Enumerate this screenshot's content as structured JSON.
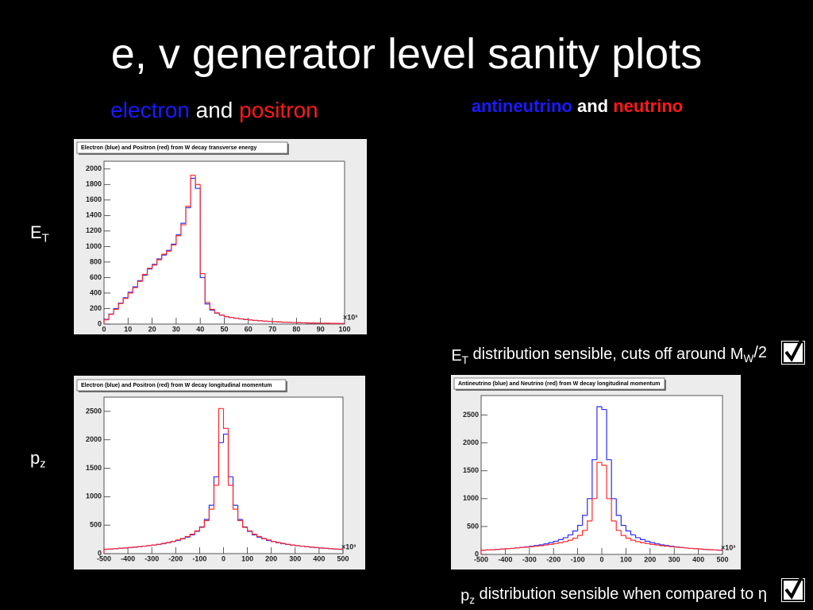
{
  "slide": {
    "title": "e, v generator level sanity plots",
    "column_headers": [
      [
        {
          "text": "electron",
          "color": "#1a1aff"
        },
        {
          "text": " and ",
          "color": "#ffffff"
        },
        {
          "text": "positron",
          "color": "#ff1a1a"
        }
      ],
      [
        {
          "text": "antineutrino",
          "color": "#1a1aff"
        },
        {
          "text": " and ",
          "color": "#ffffff"
        },
        {
          "text": "neutrino",
          "color": "#ff1a1a"
        }
      ]
    ],
    "row_labels": [
      [
        {
          "text": "E"
        },
        {
          "text": "T",
          "sub": true
        }
      ],
      [
        {
          "text": "p"
        },
        {
          "text": "z",
          "sub": true
        }
      ]
    ],
    "notes": [
      [
        {
          "text": "E"
        },
        {
          "text": "T",
          "sub": true
        },
        {
          "text": " distribution sensible, cuts off around M"
        },
        {
          "text": "W",
          "sub": true
        },
        {
          "text": "/2"
        }
      ],
      [
        {
          "text": "p"
        },
        {
          "text": "z",
          "sub": true
        },
        {
          "text": " distribution sensible when compared to η"
        }
      ]
    ]
  },
  "chart_data": [
    {
      "type": "histogram",
      "title": "Electron (blue) and Positron (red) from W decay transverse energy",
      "x_multiplier": "×10³",
      "bins": [
        0,
        2,
        4,
        6,
        8,
        10,
        12,
        14,
        16,
        18,
        20,
        22,
        24,
        26,
        28,
        30,
        32,
        34,
        36,
        38,
        40,
        42,
        44,
        46,
        48,
        50,
        52,
        54,
        56,
        58,
        60,
        62,
        64,
        66,
        68,
        70,
        72,
        74,
        76,
        78,
        80,
        82,
        84,
        86,
        88,
        90,
        92,
        94,
        96,
        98,
        100
      ],
      "series": [
        {
          "name": "Electron",
          "color": "#2b2bff",
          "values": [
            60,
            130,
            200,
            270,
            340,
            410,
            480,
            560,
            630,
            710,
            770,
            840,
            890,
            950,
            1030,
            1150,
            1300,
            1500,
            1880,
            1750,
            600,
            260,
            180,
            140,
            115,
            95,
            85,
            75,
            66,
            58,
            52,
            46,
            42,
            38,
            34,
            30,
            27,
            24,
            22,
            20,
            18,
            16,
            14,
            13,
            12,
            11,
            10,
            9,
            8,
            7
          ]
        },
        {
          "name": "Positron",
          "color": "#ff2b2b",
          "values": [
            55,
            125,
            190,
            265,
            330,
            400,
            470,
            550,
            640,
            720,
            760,
            830,
            900,
            940,
            1020,
            1140,
            1280,
            1520,
            1920,
            1800,
            650,
            280,
            190,
            145,
            118,
            97,
            86,
            76,
            67,
            60,
            53,
            47,
            43,
            38,
            35,
            31,
            28,
            25,
            22,
            20,
            18,
            16,
            15,
            13,
            12,
            11,
            10,
            9,
            8,
            7
          ]
        }
      ],
      "xlim": [
        0,
        100
      ],
      "xticks": [
        0,
        10,
        20,
        30,
        40,
        50,
        60,
        70,
        80,
        90,
        100
      ],
      "ylim": [
        0,
        2100
      ],
      "yticks": [
        0,
        200,
        400,
        600,
        800,
        1000,
        1200,
        1400,
        1600,
        1800,
        2000
      ]
    },
    {
      "type": "histogram",
      "title": "Electron (blue) and Positron (red) from W decay longitudinal momentum",
      "x_multiplier": "×10³",
      "bins": [
        -500,
        -480,
        -460,
        -440,
        -420,
        -400,
        -380,
        -360,
        -340,
        -320,
        -300,
        -280,
        -260,
        -240,
        -220,
        -200,
        -180,
        -160,
        -140,
        -120,
        -100,
        -80,
        -60,
        -40,
        -20,
        0,
        20,
        40,
        60,
        80,
        100,
        120,
        140,
        160,
        180,
        200,
        220,
        240,
        260,
        280,
        300,
        320,
        340,
        360,
        380,
        400,
        420,
        440,
        460,
        480,
        500
      ],
      "series": [
        {
          "name": "Electron",
          "color": "#2b2bff",
          "values": [
            75,
            80,
            86,
            92,
            98,
            105,
            112,
            120,
            130,
            140,
            150,
            160,
            175,
            190,
            210,
            230,
            260,
            290,
            330,
            390,
            470,
            600,
            850,
            1350,
            1950,
            2100,
            1350,
            850,
            600,
            470,
            390,
            330,
            290,
            260,
            230,
            210,
            190,
            175,
            160,
            150,
            140,
            130,
            120,
            112,
            105,
            98,
            92,
            86,
            80,
            75
          ]
        },
        {
          "name": "Positron",
          "color": "#ff2b2b",
          "values": [
            77,
            82,
            88,
            94,
            100,
            107,
            115,
            123,
            132,
            142,
            152,
            165,
            180,
            195,
            215,
            240,
            265,
            300,
            340,
            400,
            460,
            580,
            780,
            1200,
            2550,
            2200,
            1200,
            780,
            580,
            460,
            400,
            340,
            300,
            265,
            240,
            215,
            195,
            180,
            165,
            152,
            142,
            132,
            123,
            115,
            107,
            100,
            94,
            88,
            82,
            77
          ]
        }
      ],
      "xlim": [
        -500,
        500
      ],
      "xticks": [
        -500,
        -400,
        -300,
        -200,
        -100,
        0,
        100,
        200,
        300,
        400,
        500
      ],
      "ylim": [
        0,
        2750
      ],
      "yticks": [
        0,
        500,
        1000,
        1500,
        2000,
        2500
      ]
    },
    {
      "type": "histogram",
      "title": "Antineutrino (blue) and Neutrino (red) from W decay longitudinal momentum",
      "x_multiplier": "×10³",
      "bins": [
        -500,
        -480,
        -460,
        -440,
        -420,
        -400,
        -380,
        -360,
        -340,
        -320,
        -300,
        -280,
        -260,
        -240,
        -220,
        -200,
        -180,
        -160,
        -140,
        -120,
        -100,
        -80,
        -60,
        -40,
        -20,
        0,
        20,
        40,
        60,
        80,
        100,
        120,
        140,
        160,
        180,
        200,
        220,
        240,
        260,
        280,
        300,
        320,
        340,
        360,
        380,
        400,
        420,
        440,
        460,
        480,
        500
      ],
      "series": [
        {
          "name": "Antineutrino",
          "color": "#2b2bff",
          "values": [
            74,
            79,
            84,
            89,
            95,
            101,
            108,
            116,
            125,
            135,
            146,
            158,
            172,
            190,
            210,
            235,
            265,
            300,
            350,
            420,
            520,
            700,
            1000,
            1700,
            2650,
            2600,
            1700,
            1000,
            700,
            520,
            420,
            350,
            300,
            265,
            235,
            210,
            190,
            172,
            158,
            146,
            135,
            125,
            116,
            108,
            101,
            95,
            89,
            84,
            79,
            74
          ]
        },
        {
          "name": "Neutrino",
          "color": "#ff2b2b",
          "values": [
            76,
            80,
            85,
            90,
            96,
            102,
            108,
            115,
            122,
            130,
            138,
            147,
            157,
            168,
            180,
            195,
            210,
            230,
            255,
            290,
            340,
            430,
            600,
            1000,
            1650,
            1600,
            1000,
            600,
            430,
            340,
            290,
            255,
            230,
            210,
            195,
            180,
            168,
            157,
            147,
            138,
            130,
            122,
            115,
            108,
            102,
            96,
            90,
            85,
            80,
            76
          ]
        }
      ],
      "xlim": [
        -500,
        500
      ],
      "xticks": [
        -500,
        -400,
        -300,
        -200,
        -100,
        0,
        100,
        200,
        300,
        400,
        500
      ],
      "ylim": [
        0,
        2850
      ],
      "yticks": [
        0,
        500,
        1000,
        1500,
        2000,
        2500
      ]
    }
  ]
}
